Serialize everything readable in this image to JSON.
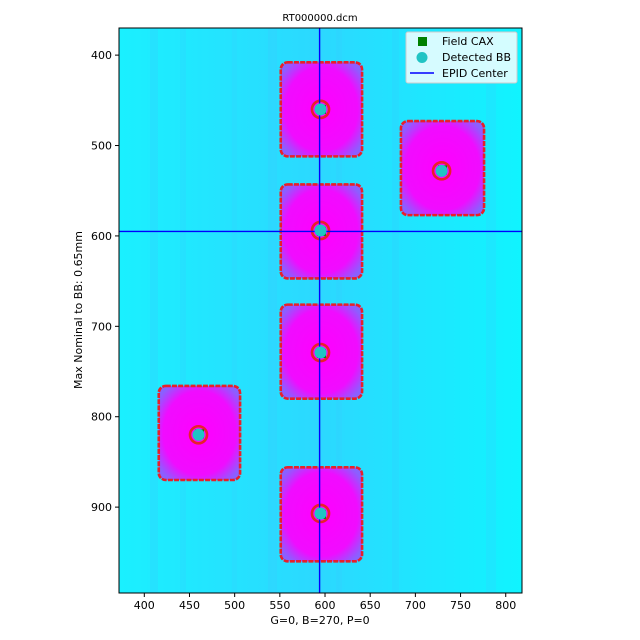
{
  "chart_data": {
    "type": "scatter",
    "title": "RT000000.dcm",
    "xlabel": "G=0, B=270, P=0",
    "ylabel": "Max Nominal to BB: 0.65mm",
    "xlim": [
      372,
      818
    ],
    "ylim": [
      995,
      370
    ],
    "y_inverted": true,
    "xticks": [
      400,
      450,
      500,
      550,
      600,
      650,
      700,
      750,
      800
    ],
    "yticks": [
      400,
      500,
      600,
      700,
      800,
      900
    ],
    "grid": false,
    "legend_position": "upper-right",
    "background": {
      "description": "EPID image",
      "field_color": "#ff00ff",
      "open_color": "#00ffff",
      "stripe_color": "#4db6ff"
    },
    "fields": [
      {
        "center": [
          596,
          460
        ],
        "size": [
          90,
          104
        ]
      },
      {
        "center": [
          730,
          525
        ],
        "size": [
          92,
          104
        ]
      },
      {
        "center": [
          596,
          595
        ],
        "size": [
          90,
          104
        ]
      },
      {
        "center": [
          596,
          728
        ],
        "size": [
          90,
          104
        ]
      },
      {
        "center": [
          461,
          818
        ],
        "size": [
          90,
          104
        ]
      },
      {
        "center": [
          596,
          908
        ],
        "size": [
          90,
          104
        ]
      }
    ],
    "series": [
      {
        "name": "Field CAX",
        "marker": "square",
        "color": "#008000",
        "points": [
          [
            596,
            460
          ],
          [
            730,
            527
          ],
          [
            596,
            595
          ],
          [
            596,
            730
          ],
          [
            461,
            819
          ],
          [
            596,
            908
          ]
        ]
      },
      {
        "name": "Detected BB",
        "marker": "circle",
        "color": "#20c4c4",
        "points": [
          [
            595,
            460
          ],
          [
            729,
            528
          ],
          [
            595,
            594
          ],
          [
            595,
            729
          ],
          [
            460,
            820
          ],
          [
            595,
            907
          ]
        ]
      },
      {
        "name": "EPID Center",
        "marker": "line",
        "color": "#0000ff",
        "vline_x": 594,
        "hline_y": 595
      }
    ],
    "bb_rings": [
      {
        "center": [
          595,
          460
        ],
        "radius": 9
      },
      {
        "center": [
          729,
          528
        ],
        "radius": 9
      },
      {
        "center": [
          595,
          594
        ],
        "radius": 9
      },
      {
        "center": [
          595,
          729
        ],
        "radius": 9
      },
      {
        "center": [
          460,
          820
        ],
        "radius": 9
      },
      {
        "center": [
          595,
          907
        ],
        "radius": 9
      }
    ],
    "edge_color": "#e8202a"
  }
}
